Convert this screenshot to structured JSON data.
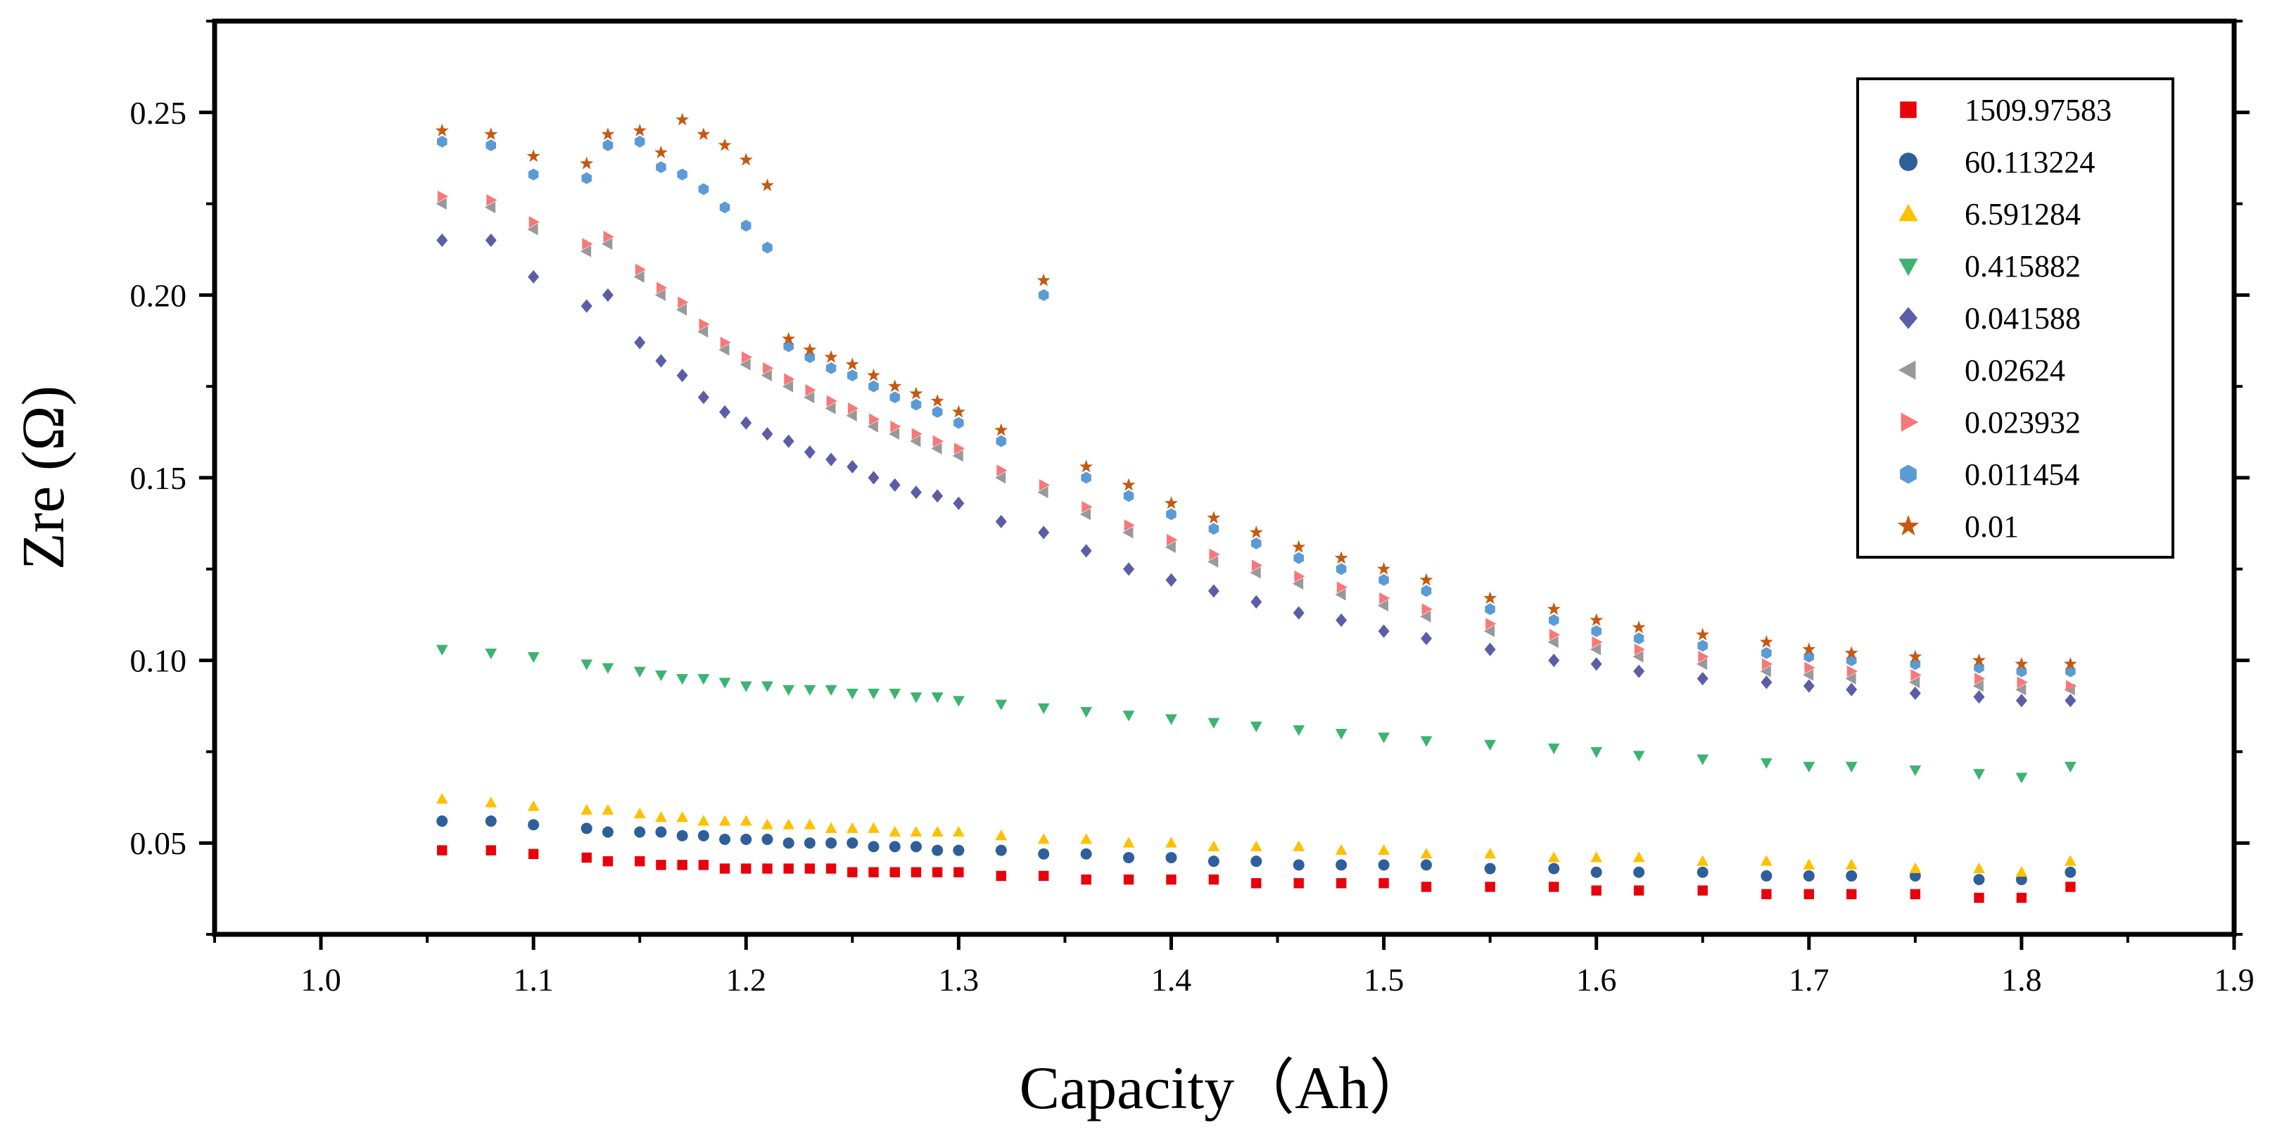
{
  "chart_data": {
    "type": "scatter",
    "title": "",
    "xlabel": "Capacity（Ah）",
    "ylabel": "Zre (Ω)",
    "xlim": [
      0.95,
      1.9
    ],
    "ylim": [
      0.025,
      0.275
    ],
    "xticks": [
      1.0,
      1.1,
      1.2,
      1.3,
      1.4,
      1.5,
      1.6,
      1.7,
      1.8,
      1.9
    ],
    "xtick_labels": [
      "1.0",
      "1.1",
      "1.2",
      "1.3",
      "1.4",
      "1.5",
      "1.6",
      "1.7",
      "1.8",
      "1.9"
    ],
    "yticks": [
      0.05,
      0.1,
      0.15,
      0.2,
      0.25
    ],
    "ytick_labels": [
      "0.05",
      "0.10",
      "0.15",
      "0.20",
      "0.25"
    ],
    "grid": false,
    "legend_position": "top-right",
    "series": [
      {
        "name": "1509.97583",
        "marker": "square",
        "color": "#e8000b",
        "x": [
          1.057,
          1.08,
          1.1,
          1.125,
          1.135,
          1.15,
          1.16,
          1.17,
          1.18,
          1.19,
          1.2,
          1.21,
          1.22,
          1.23,
          1.24,
          1.25,
          1.26,
          1.27,
          1.28,
          1.29,
          1.3,
          1.32,
          1.34,
          1.36,
          1.38,
          1.4,
          1.42,
          1.44,
          1.46,
          1.48,
          1.5,
          1.52,
          1.55,
          1.58,
          1.6,
          1.62,
          1.65,
          1.68,
          1.7,
          1.72,
          1.75,
          1.78,
          1.8,
          1.823
        ],
        "y": [
          0.048,
          0.048,
          0.047,
          0.046,
          0.045,
          0.045,
          0.044,
          0.044,
          0.044,
          0.043,
          0.043,
          0.043,
          0.043,
          0.043,
          0.043,
          0.042,
          0.042,
          0.042,
          0.042,
          0.042,
          0.042,
          0.041,
          0.041,
          0.04,
          0.04,
          0.04,
          0.04,
          0.039,
          0.039,
          0.039,
          0.039,
          0.038,
          0.038,
          0.038,
          0.037,
          0.037,
          0.037,
          0.036,
          0.036,
          0.036,
          0.036,
          0.035,
          0.035,
          0.038
        ]
      },
      {
        "name": "60.113224",
        "marker": "circle",
        "color": "#2e5f9a",
        "x": [
          1.057,
          1.08,
          1.1,
          1.125,
          1.135,
          1.15,
          1.16,
          1.17,
          1.18,
          1.19,
          1.2,
          1.21,
          1.22,
          1.23,
          1.24,
          1.25,
          1.26,
          1.27,
          1.28,
          1.29,
          1.3,
          1.32,
          1.34,
          1.36,
          1.38,
          1.4,
          1.42,
          1.44,
          1.46,
          1.48,
          1.5,
          1.52,
          1.55,
          1.58,
          1.6,
          1.62,
          1.65,
          1.68,
          1.7,
          1.72,
          1.75,
          1.78,
          1.8,
          1.823
        ],
        "y": [
          0.056,
          0.056,
          0.055,
          0.054,
          0.053,
          0.053,
          0.053,
          0.052,
          0.052,
          0.051,
          0.051,
          0.051,
          0.05,
          0.05,
          0.05,
          0.05,
          0.049,
          0.049,
          0.049,
          0.048,
          0.048,
          0.048,
          0.047,
          0.047,
          0.046,
          0.046,
          0.045,
          0.045,
          0.044,
          0.044,
          0.044,
          0.044,
          0.043,
          0.043,
          0.042,
          0.042,
          0.042,
          0.041,
          0.041,
          0.041,
          0.041,
          0.04,
          0.04,
          0.042
        ]
      },
      {
        "name": "6.591284",
        "marker": "triangle-up",
        "color": "#ffc000",
        "x": [
          1.057,
          1.08,
          1.1,
          1.125,
          1.135,
          1.15,
          1.16,
          1.17,
          1.18,
          1.19,
          1.2,
          1.21,
          1.22,
          1.23,
          1.24,
          1.25,
          1.26,
          1.27,
          1.28,
          1.29,
          1.3,
          1.32,
          1.34,
          1.36,
          1.38,
          1.4,
          1.42,
          1.44,
          1.46,
          1.48,
          1.5,
          1.52,
          1.55,
          1.58,
          1.6,
          1.62,
          1.65,
          1.68,
          1.7,
          1.72,
          1.75,
          1.78,
          1.8,
          1.823
        ],
        "y": [
          0.062,
          0.061,
          0.06,
          0.059,
          0.059,
          0.058,
          0.057,
          0.057,
          0.056,
          0.056,
          0.056,
          0.055,
          0.055,
          0.055,
          0.054,
          0.054,
          0.054,
          0.053,
          0.053,
          0.053,
          0.053,
          0.052,
          0.051,
          0.051,
          0.05,
          0.05,
          0.049,
          0.049,
          0.049,
          0.048,
          0.048,
          0.047,
          0.047,
          0.046,
          0.046,
          0.046,
          0.045,
          0.045,
          0.044,
          0.044,
          0.043,
          0.043,
          0.042,
          0.045
        ]
      },
      {
        "name": "0.415882",
        "marker": "triangle-down",
        "color": "#3cb371",
        "x": [
          1.057,
          1.08,
          1.1,
          1.125,
          1.135,
          1.15,
          1.16,
          1.17,
          1.18,
          1.19,
          1.2,
          1.21,
          1.22,
          1.23,
          1.24,
          1.25,
          1.26,
          1.27,
          1.28,
          1.29,
          1.3,
          1.32,
          1.34,
          1.36,
          1.38,
          1.4,
          1.42,
          1.44,
          1.46,
          1.48,
          1.5,
          1.52,
          1.55,
          1.58,
          1.6,
          1.62,
          1.65,
          1.68,
          1.7,
          1.72,
          1.75,
          1.78,
          1.8,
          1.823
        ],
        "y": [
          0.103,
          0.102,
          0.101,
          0.099,
          0.098,
          0.097,
          0.096,
          0.095,
          0.095,
          0.094,
          0.093,
          0.093,
          0.092,
          0.092,
          0.092,
          0.091,
          0.091,
          0.091,
          0.09,
          0.09,
          0.089,
          0.088,
          0.087,
          0.086,
          0.085,
          0.084,
          0.083,
          0.082,
          0.081,
          0.08,
          0.079,
          0.078,
          0.077,
          0.076,
          0.075,
          0.074,
          0.073,
          0.072,
          0.071,
          0.071,
          0.07,
          0.069,
          0.068,
          0.071
        ]
      },
      {
        "name": "0.041588",
        "marker": "diamond",
        "color": "#5b5ea6",
        "x": [
          1.057,
          1.08,
          1.1,
          1.125,
          1.135,
          1.15,
          1.16,
          1.17,
          1.18,
          1.19,
          1.2,
          1.21,
          1.22,
          1.23,
          1.24,
          1.25,
          1.26,
          1.27,
          1.28,
          1.29,
          1.3,
          1.32,
          1.34,
          1.36,
          1.38,
          1.4,
          1.42,
          1.44,
          1.46,
          1.48,
          1.5,
          1.52,
          1.55,
          1.58,
          1.6,
          1.62,
          1.65,
          1.68,
          1.7,
          1.72,
          1.75,
          1.78,
          1.8,
          1.823
        ],
        "y": [
          0.215,
          0.215,
          0.205,
          0.197,
          0.2,
          0.187,
          0.182,
          0.178,
          0.172,
          0.168,
          0.165,
          0.162,
          0.16,
          0.157,
          0.155,
          0.153,
          0.15,
          0.148,
          0.146,
          0.145,
          0.143,
          0.138,
          0.135,
          0.13,
          0.125,
          0.122,
          0.119,
          0.116,
          0.113,
          0.111,
          0.108,
          0.106,
          0.103,
          0.1,
          0.099,
          0.097,
          0.095,
          0.094,
          0.093,
          0.092,
          0.091,
          0.09,
          0.089,
          0.089
        ]
      },
      {
        "name": "0.02624",
        "marker": "triangle-left",
        "color": "#999999",
        "x": [
          1.057,
          1.08,
          1.1,
          1.125,
          1.135,
          1.15,
          1.16,
          1.17,
          1.18,
          1.19,
          1.2,
          1.21,
          1.22,
          1.23,
          1.24,
          1.25,
          1.26,
          1.27,
          1.28,
          1.29,
          1.3,
          1.32,
          1.34,
          1.36,
          1.38,
          1.4,
          1.42,
          1.44,
          1.46,
          1.48,
          1.5,
          1.52,
          1.55,
          1.58,
          1.6,
          1.62,
          1.65,
          1.68,
          1.7,
          1.72,
          1.75,
          1.78,
          1.8,
          1.823
        ],
        "y": [
          0.225,
          0.224,
          0.218,
          0.212,
          0.214,
          0.205,
          0.2,
          0.196,
          0.19,
          0.185,
          0.181,
          0.178,
          0.175,
          0.172,
          0.169,
          0.167,
          0.164,
          0.162,
          0.16,
          0.158,
          0.156,
          0.15,
          0.146,
          0.14,
          0.135,
          0.131,
          0.127,
          0.124,
          0.121,
          0.118,
          0.115,
          0.112,
          0.108,
          0.105,
          0.103,
          0.101,
          0.099,
          0.097,
          0.096,
          0.095,
          0.094,
          0.093,
          0.092,
          0.092
        ]
      },
      {
        "name": "0.023932",
        "marker": "triangle-right",
        "color": "#f87878",
        "x": [
          1.057,
          1.08,
          1.1,
          1.125,
          1.135,
          1.15,
          1.16,
          1.17,
          1.18,
          1.19,
          1.2,
          1.21,
          1.22,
          1.23,
          1.24,
          1.25,
          1.26,
          1.27,
          1.28,
          1.29,
          1.3,
          1.32,
          1.34,
          1.36,
          1.38,
          1.4,
          1.42,
          1.44,
          1.46,
          1.48,
          1.5,
          1.52,
          1.55,
          1.58,
          1.6,
          1.62,
          1.65,
          1.68,
          1.7,
          1.72,
          1.75,
          1.78,
          1.8,
          1.823
        ],
        "y": [
          0.227,
          0.226,
          0.22,
          0.214,
          0.216,
          0.207,
          0.202,
          0.198,
          0.192,
          0.187,
          0.183,
          0.18,
          0.177,
          0.174,
          0.171,
          0.169,
          0.166,
          0.164,
          0.162,
          0.16,
          0.158,
          0.152,
          0.148,
          0.142,
          0.137,
          0.133,
          0.129,
          0.126,
          0.123,
          0.12,
          0.117,
          0.114,
          0.11,
          0.107,
          0.105,
          0.103,
          0.101,
          0.099,
          0.098,
          0.097,
          0.096,
          0.095,
          0.094,
          0.093
        ]
      },
      {
        "name": "0.011454",
        "marker": "hexagon",
        "color": "#5b9bd5",
        "x": [
          1.057,
          1.08,
          1.1,
          1.125,
          1.135,
          1.15,
          1.16,
          1.17,
          1.18,
          1.19,
          1.2,
          1.21,
          1.22,
          1.23,
          1.24,
          1.25,
          1.26,
          1.27,
          1.28,
          1.29,
          1.3,
          1.32,
          1.34,
          1.36,
          1.38,
          1.4,
          1.42,
          1.44,
          1.46,
          1.48,
          1.5,
          1.52,
          1.55,
          1.58,
          1.6,
          1.62,
          1.65,
          1.68,
          1.7,
          1.72,
          1.75,
          1.78,
          1.8,
          1.823
        ],
        "y": [
          0.242,
          0.241,
          0.233,
          0.232,
          0.241,
          0.242,
          0.235,
          0.233,
          0.229,
          0.224,
          0.219,
          0.213,
          0.186,
          0.183,
          0.18,
          0.178,
          0.175,
          0.172,
          0.17,
          0.168,
          0.165,
          0.16,
          0.2,
          0.15,
          0.145,
          0.14,
          0.136,
          0.132,
          0.128,
          0.125,
          0.122,
          0.119,
          0.114,
          0.111,
          0.108,
          0.106,
          0.104,
          0.102,
          0.101,
          0.1,
          0.099,
          0.098,
          0.097,
          0.097
        ]
      },
      {
        "name": "0.01",
        "marker": "star",
        "color": "#c65911",
        "x": [
          1.057,
          1.08,
          1.1,
          1.125,
          1.135,
          1.15,
          1.16,
          1.17,
          1.18,
          1.19,
          1.2,
          1.21,
          1.22,
          1.23,
          1.24,
          1.25,
          1.26,
          1.27,
          1.28,
          1.29,
          1.3,
          1.32,
          1.34,
          1.36,
          1.38,
          1.4,
          1.42,
          1.44,
          1.46,
          1.48,
          1.5,
          1.52,
          1.55,
          1.58,
          1.6,
          1.62,
          1.65,
          1.68,
          1.7,
          1.72,
          1.75,
          1.78,
          1.8,
          1.823
        ],
        "y": [
          0.245,
          0.244,
          0.238,
          0.236,
          0.244,
          0.245,
          0.239,
          0.248,
          0.244,
          0.241,
          0.237,
          0.23,
          0.188,
          0.185,
          0.183,
          0.181,
          0.178,
          0.175,
          0.173,
          0.171,
          0.168,
          0.163,
          0.204,
          0.153,
          0.148,
          0.143,
          0.139,
          0.135,
          0.131,
          0.128,
          0.125,
          0.122,
          0.117,
          0.114,
          0.111,
          0.109,
          0.107,
          0.105,
          0.103,
          0.102,
          0.101,
          0.1,
          0.099,
          0.099
        ]
      }
    ]
  }
}
